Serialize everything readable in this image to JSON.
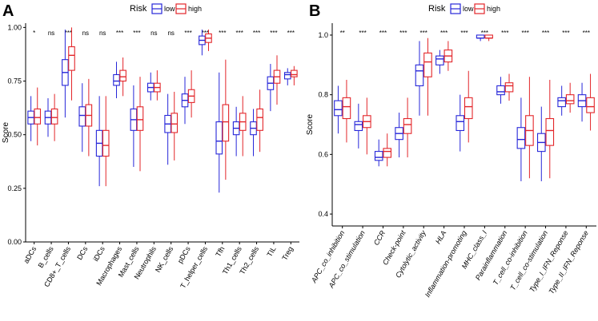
{
  "colors": {
    "low": "#2727d9",
    "high": "#e3262a",
    "axis": "#000000"
  },
  "chart_data": [
    {
      "type": "boxplot",
      "panel_label": "A",
      "title": "",
      "xlabel": "",
      "ylabel": "Score",
      "ylim": [
        0,
        1
      ],
      "yticks": [
        "0.00",
        "0.25",
        "0.50",
        "0.75",
        "1.00"
      ],
      "legend": {
        "title": "Risk",
        "entries": [
          "low",
          "high"
        ],
        "position": "top"
      },
      "categories": [
        "aDCs",
        "B_cells",
        "CD8+_T_cells",
        "DCs",
        "iDCs",
        "Macrophages",
        "Mast_cells",
        "Neutrophils",
        "NK_cells",
        "pDCs",
        "T_helper_cells",
        "Tfh",
        "Th1_cells",
        "Th2_cells",
        "TIL",
        "Treg"
      ],
      "significance": [
        "*",
        "ns",
        "***",
        "ns",
        "ns",
        "***",
        "***",
        "ns",
        "ns",
        "***",
        "***",
        "***",
        "***",
        "***",
        "***",
        "***"
      ],
      "series": [
        {
          "name": "low",
          "boxes": [
            [
              0.47,
              0.55,
              0.58,
              0.61,
              0.68
            ],
            [
              0.49,
              0.55,
              0.58,
              0.61,
              0.67
            ],
            [
              0.58,
              0.73,
              0.79,
              0.85,
              0.99
            ],
            [
              0.42,
              0.54,
              0.59,
              0.63,
              0.74
            ],
            [
              0.26,
              0.4,
              0.46,
              0.52,
              0.68
            ],
            [
              0.67,
              0.73,
              0.75,
              0.78,
              0.84
            ],
            [
              0.35,
              0.52,
              0.57,
              0.62,
              0.73
            ],
            [
              0.66,
              0.7,
              0.72,
              0.74,
              0.79
            ],
            [
              0.36,
              0.51,
              0.55,
              0.59,
              0.69
            ],
            [
              0.55,
              0.63,
              0.66,
              0.69,
              0.77
            ],
            [
              0.87,
              0.92,
              0.94,
              0.96,
              0.99
            ],
            [
              0.23,
              0.41,
              0.47,
              0.56,
              0.79
            ],
            [
              0.4,
              0.5,
              0.53,
              0.56,
              0.63
            ],
            [
              0.4,
              0.5,
              0.53,
              0.56,
              0.62
            ],
            [
              0.61,
              0.71,
              0.74,
              0.77,
              0.83
            ],
            [
              0.73,
              0.76,
              0.78,
              0.79,
              0.81
            ]
          ]
        },
        {
          "name": "high",
          "boxes": [
            [
              0.45,
              0.55,
              0.58,
              0.62,
              0.72
            ],
            [
              0.47,
              0.55,
              0.58,
              0.62,
              0.69
            ],
            [
              0.66,
              0.8,
              0.87,
              0.91,
              1.0
            ],
            [
              0.4,
              0.54,
              0.59,
              0.64,
              0.76
            ],
            [
              0.26,
              0.4,
              0.45,
              0.52,
              0.68
            ],
            [
              0.68,
              0.75,
              0.77,
              0.8,
              0.86
            ],
            [
              0.33,
              0.52,
              0.57,
              0.63,
              0.77
            ],
            [
              0.66,
              0.7,
              0.72,
              0.74,
              0.8
            ],
            [
              0.38,
              0.51,
              0.55,
              0.6,
              0.7
            ],
            [
              0.58,
              0.65,
              0.68,
              0.71,
              0.8
            ],
            [
              0.89,
              0.93,
              0.95,
              0.97,
              0.99
            ],
            [
              0.29,
              0.47,
              0.56,
              0.64,
              0.85
            ],
            [
              0.4,
              0.52,
              0.56,
              0.6,
              0.68
            ],
            [
              0.42,
              0.52,
              0.58,
              0.62,
              0.71
            ],
            [
              0.64,
              0.74,
              0.77,
              0.8,
              0.87
            ],
            [
              0.73,
              0.77,
              0.78,
              0.8,
              0.82
            ]
          ]
        }
      ]
    },
    {
      "type": "boxplot",
      "panel_label": "B",
      "title": "",
      "xlabel": "",
      "ylabel": "Score",
      "ylim": [
        0.36,
        1.04
      ],
      "yticks": [
        "0.4",
        "0.6",
        "0.8",
        "1.0"
      ],
      "legend": {
        "title": "Risk",
        "entries": [
          "low",
          "high"
        ],
        "position": "top"
      },
      "categories": [
        "APC_co_inhibition",
        "APC_co_stimulation",
        "CCR",
        "Check-point",
        "Cytolytic_activity",
        "HLA",
        "Inflammation-promoting",
        "MHC_class_I",
        "Parainflammation",
        "T_cell_co-inhibition",
        "T_cell_co-stimulation",
        "Type_I_IFN_Reponse",
        "Type_II_IFN_Reponse"
      ],
      "significance": [
        "**",
        "***",
        "***",
        "***",
        "***",
        "***",
        "***",
        "***",
        "***",
        "***",
        "***",
        "***",
        "***"
      ],
      "series": [
        {
          "name": "low",
          "boxes": [
            [
              0.67,
              0.73,
              0.75,
              0.78,
              0.83
            ],
            [
              0.62,
              0.68,
              0.7,
              0.71,
              0.77
            ],
            [
              0.56,
              0.58,
              0.59,
              0.61,
              0.65
            ],
            [
              0.59,
              0.65,
              0.67,
              0.69,
              0.74
            ],
            [
              0.73,
              0.83,
              0.88,
              0.9,
              0.98
            ],
            [
              0.87,
              0.9,
              0.92,
              0.93,
              0.95
            ],
            [
              0.61,
              0.68,
              0.71,
              0.73,
              0.8
            ],
            [
              0.98,
              0.99,
              0.99,
              1.0,
              1.0
            ],
            [
              0.77,
              0.8,
              0.81,
              0.83,
              0.86
            ],
            [
              0.51,
              0.62,
              0.65,
              0.69,
              0.79
            ],
            [
              0.51,
              0.61,
              0.64,
              0.67,
              0.76
            ],
            [
              0.73,
              0.76,
              0.78,
              0.79,
              0.83
            ],
            [
              0.71,
              0.76,
              0.78,
              0.8,
              0.84
            ]
          ]
        },
        {
          "name": "high",
          "boxes": [
            [
              0.64,
              0.72,
              0.76,
              0.79,
              0.85
            ],
            [
              0.6,
              0.69,
              0.71,
              0.73,
              0.79
            ],
            [
              0.56,
              0.59,
              0.61,
              0.62,
              0.67
            ],
            [
              0.59,
              0.67,
              0.7,
              0.72,
              0.79
            ],
            [
              0.73,
              0.86,
              0.91,
              0.94,
              0.99
            ],
            [
              0.88,
              0.91,
              0.93,
              0.95,
              0.98
            ],
            [
              0.64,
              0.72,
              0.76,
              0.79,
              0.88
            ],
            [
              0.98,
              0.99,
              0.99,
              1.0,
              1.0
            ],
            [
              0.78,
              0.81,
              0.83,
              0.84,
              0.87
            ],
            [
              0.52,
              0.63,
              0.68,
              0.73,
              0.86
            ],
            [
              0.52,
              0.63,
              0.68,
              0.72,
              0.85
            ],
            [
              0.74,
              0.77,
              0.78,
              0.8,
              0.84
            ],
            [
              0.68,
              0.74,
              0.76,
              0.79,
              0.87
            ]
          ]
        }
      ]
    }
  ]
}
